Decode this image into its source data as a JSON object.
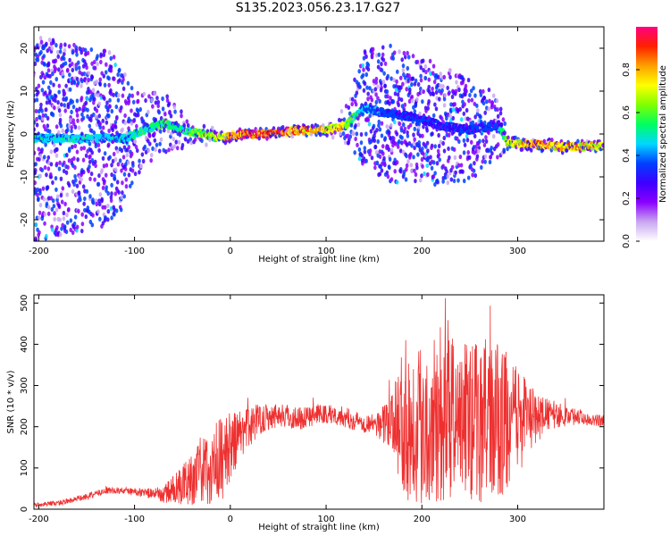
{
  "title": "S135.2023.056.23.17.G27",
  "chart_data": [
    {
      "type": "heatmap",
      "title": "",
      "xlabel": "Height of straight line (km)",
      "ylabel": "Frequency (Hz)",
      "xlim": [
        -205,
        390
      ],
      "ylim": [
        -25,
        25
      ],
      "xticks": [
        -200,
        -100,
        0,
        100,
        200,
        300
      ],
      "yticks": [
        -20,
        -10,
        0,
        10,
        20
      ],
      "colorbar": {
        "label": "Normalized spectral amplitude",
        "range": [
          0.0,
          1.0
        ],
        "ticks": [
          0.0,
          0.2,
          0.4,
          0.6,
          0.8
        ],
        "colors": [
          "#ffffff",
          "#c9a6f0",
          "#8a00ff",
          "#3c00ff",
          "#0040ff",
          "#00d8ff",
          "#00ff60",
          "#80ff00",
          "#ffff00",
          "#ffa000",
          "#ff2000",
          "#ff0080"
        ]
      },
      "ridge": {
        "x": [
          -110,
          -90,
          -70,
          -50,
          -30,
          -10,
          10,
          40,
          70,
          100,
          120,
          140,
          160,
          190,
          220,
          250,
          280,
          290,
          320,
          350,
          385
        ],
        "y": [
          -1,
          1,
          2.5,
          1,
          0,
          -1,
          0,
          0,
          0.8,
          1,
          2,
          6,
          5,
          4,
          2,
          1,
          2,
          -2,
          -2.5,
          -3,
          -2.8
        ],
        "amplitude": [
          0.45,
          0.5,
          0.55,
          0.5,
          0.65,
          0.7,
          0.9,
          0.95,
          0.85,
          0.8,
          0.7,
          0.4,
          0.35,
          0.3,
          0.3,
          0.3,
          0.35,
          0.75,
          0.85,
          0.8,
          0.75
        ]
      },
      "spread_hz": {
        "x": [
          -205,
          -120,
          -100,
          -60,
          -40,
          0,
          100,
          120,
          140,
          170,
          220,
          250,
          280,
          290,
          390
        ],
        "y": [
          24,
          20,
          10,
          6,
          3,
          1.2,
          1.2,
          4,
          14,
          16,
          14,
          12,
          8,
          1.5,
          1.3
        ]
      }
    },
    {
      "type": "line",
      "title": "",
      "xlabel": "Height of straight line (km)",
      "ylabel": "SNR (10 * v/v)",
      "xlim": [
        -205,
        390
      ],
      "ylim": [
        0,
        520
      ],
      "xticks": [
        -200,
        -100,
        0,
        100,
        200,
        300
      ],
      "yticks": [
        0,
        100,
        200,
        300,
        400,
        500
      ],
      "color": "#ee3030",
      "envelope": {
        "x": [
          -205,
          -180,
          -150,
          -130,
          -110,
          -90,
          -70,
          -50,
          -30,
          -10,
          10,
          30,
          50,
          70,
          90,
          110,
          130,
          150,
          170,
          180,
          200,
          240,
          280,
          320,
          330,
          360,
          390
        ],
        "mean": [
          10,
          15,
          30,
          45,
          45,
          40,
          35,
          60,
          90,
          120,
          180,
          220,
          230,
          220,
          230,
          230,
          215,
          205,
          210,
          220,
          210,
          220,
          210,
          220,
          230,
          225,
          215
        ],
        "noise": [
          5,
          6,
          8,
          8,
          8,
          10,
          20,
          50,
          80,
          110,
          60,
          40,
          30,
          30,
          25,
          25,
          25,
          25,
          70,
          200,
          200,
          200,
          200,
          60,
          40,
          20,
          15
        ]
      }
    }
  ]
}
